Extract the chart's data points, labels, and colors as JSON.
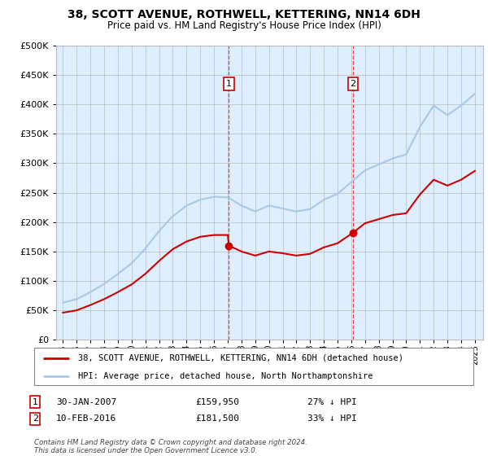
{
  "title": "38, SCOTT AVENUE, ROTHWELL, KETTERING, NN14 6DH",
  "subtitle": "Price paid vs. HM Land Registry's House Price Index (HPI)",
  "ytick_values": [
    0,
    50000,
    100000,
    150000,
    200000,
    250000,
    300000,
    350000,
    400000,
    450000,
    500000
  ],
  "ylim": [
    0,
    500000
  ],
  "xlim_start": 1994.5,
  "xlim_end": 2025.6,
  "hpi_color": "#a8c8e8",
  "price_color": "#cc0000",
  "sale1_x": 2007.08,
  "sale1_y": 159950,
  "sale2_x": 2016.12,
  "sale2_y": 181500,
  "sale1_label": "30-JAN-2007",
  "sale1_price": "£159,950",
  "sale1_pct": "27% ↓ HPI",
  "sale2_label": "10-FEB-2016",
  "sale2_price": "£181,500",
  "sale2_pct": "33% ↓ HPI",
  "legend_line1": "38, SCOTT AVENUE, ROTHWELL, KETTERING, NN14 6DH (detached house)",
  "legend_line2": "HPI: Average price, detached house, North Northamptonshire",
  "footer": "Contains HM Land Registry data © Crown copyright and database right 2024.\nThis data is licensed under the Open Government Licence v3.0.",
  "background_color": "#ddeeff",
  "plot_bg": "#ffffff",
  "grid_color": "#bbbbbb",
  "hpi_years": [
    1995,
    1996,
    1997,
    1998,
    1999,
    2000,
    2001,
    2002,
    2003,
    2004,
    2005,
    2006,
    2007,
    2008,
    2009,
    2010,
    2011,
    2012,
    2013,
    2014,
    2015,
    2016,
    2017,
    2018,
    2019,
    2020,
    2021,
    2022,
    2023,
    2024,
    2025
  ],
  "hpi_values": [
    63000,
    69000,
    81000,
    95000,
    112000,
    130000,
    155000,
    185000,
    210000,
    228000,
    238000,
    243000,
    242000,
    228000,
    218000,
    228000,
    223000,
    218000,
    222000,
    238000,
    248000,
    268000,
    288000,
    298000,
    308000,
    315000,
    362000,
    398000,
    382000,
    398000,
    418000
  ],
  "price_years": [
    1995,
    1996,
    1997,
    1998,
    1999,
    2000,
    2001,
    2002,
    2003,
    2004,
    2005,
    2006,
    2007.0,
    2007.08,
    2007.08,
    2008,
    2009,
    2010,
    2011,
    2012,
    2013,
    2014,
    2015,
    2016.1,
    2016.1,
    2017,
    2018,
    2019,
    2020,
    2021,
    2022,
    2023,
    2024,
    2025
  ],
  "price_values": [
    46000,
    50000,
    59000,
    69000,
    81000,
    94000,
    112000,
    134000,
    154000,
    167000,
    175000,
    178000,
    178000,
    159950,
    159950,
    150000,
    143000,
    150000,
    147000,
    143000,
    146000,
    157000,
    164000,
    181500,
    181500,
    198000,
    205000,
    212000,
    215000,
    247000,
    272000,
    262000,
    272000,
    287000
  ]
}
